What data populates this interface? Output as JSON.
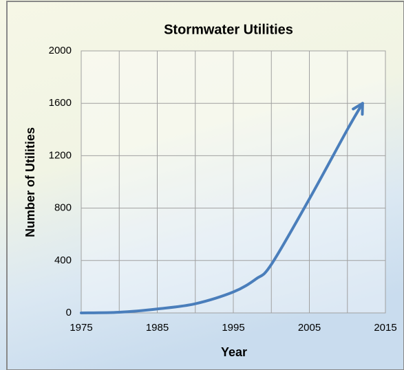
{
  "chart_data": {
    "type": "line",
    "title": "Stormwater Utilities",
    "x_label": "Year",
    "y_label": "Number of Utilities",
    "series": [
      {
        "name": "Stormwater Utilities",
        "color": "#4a7ebb",
        "x": [
          1975,
          1980,
          1985,
          1990,
          1995,
          1998,
          2000,
          2005,
          2010,
          2012
        ],
        "values": [
          0,
          5,
          30,
          70,
          160,
          260,
          370,
          870,
          1400,
          1600
        ]
      }
    ],
    "xlim": [
      1975,
      2015
    ],
    "xticks": [
      1975,
      1985,
      1995,
      2005,
      2015
    ],
    "xminor": [
      1980,
      1990,
      2000,
      2010
    ],
    "ylim": [
      0,
      2000
    ],
    "yticks": [
      0,
      400,
      800,
      1200,
      1600,
      2000
    ],
    "grid": true,
    "arrow_end": true
  }
}
